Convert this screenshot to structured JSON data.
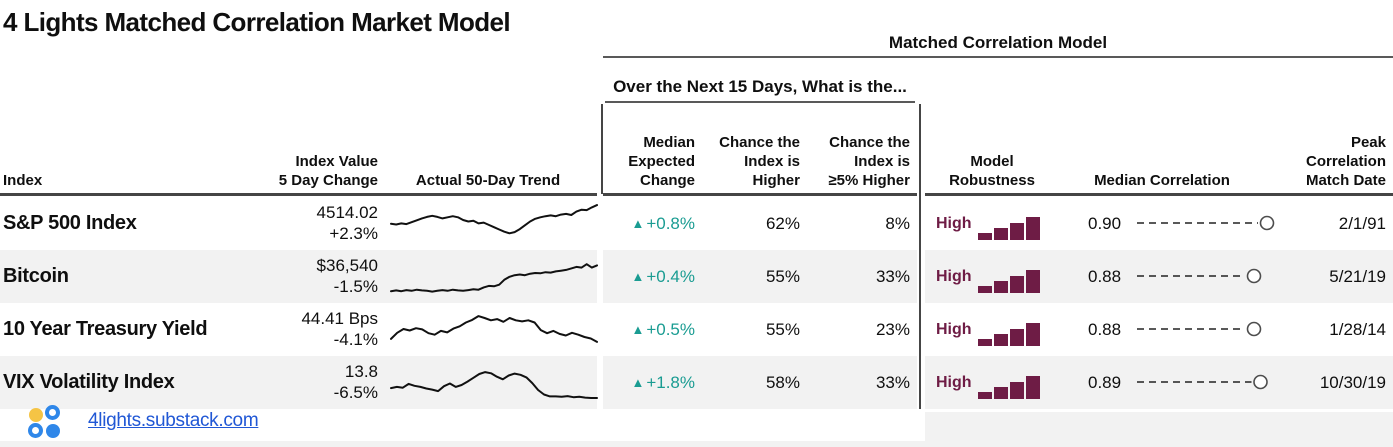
{
  "title": "4 Lights Matched Correlation Market Model",
  "glyphs": {
    "up_arrow": "▲"
  },
  "header": {
    "group_title": "Matched Correlation Model",
    "subgroup_title": "Over the Next 15 Days, What is the...",
    "col_index": "Index",
    "col_value": "Index Value\n5 Day Change",
    "col_trend": "Actual 50-Day Trend",
    "col_med_change": "Median\nExpected\nChange",
    "col_chance_higher": "Chance the\nIndex is\nHigher",
    "col_chance_5_higher": "Chance the\nIndex is\n≥5% Higher",
    "col_robustness": "Model\nRobustness",
    "col_median_correlation": "Median Correlation",
    "col_peak": "Peak\nCorrelation\nMatch Date"
  },
  "robustness_chart": {
    "bar_fractions": [
      0.3,
      0.52,
      0.74,
      1.0
    ]
  },
  "chart_data": {
    "type": "table",
    "title": "4 Lights Matched Correlation Market Model",
    "section_header": "Matched Correlation Model",
    "subsection_header": "Over the Next 15 Days, What is the...",
    "columns": [
      "Index",
      "Index Value 5 Day Change",
      "Actual 50-Day Trend",
      "Median Expected Change",
      "Chance the Index is Higher",
      "Chance the Index is ≥5% Higher",
      "Model Robustness",
      "Median Correlation",
      "Peak Correlation Match Date"
    ],
    "rows": [
      {
        "index": "S&P 500 Index",
        "index_value": "4514.02",
        "five_day_change": "+2.3%",
        "median_expected_change": "+0.8%",
        "direction": "up",
        "chance_higher": "62%",
        "chance_5pct_higher": "8%",
        "model_robustness": "High",
        "median_correlation": 0.9,
        "median_correlation_label": "0.90",
        "peak_match_date": "2/1/91",
        "trend_sparkline": [
          48,
          46,
          49,
          47,
          52,
          57,
          62,
          66,
          69,
          66,
          62,
          65,
          68,
          65,
          58,
          54,
          56,
          49,
          51,
          45,
          39,
          33,
          27,
          23,
          26,
          34,
          44,
          54,
          61,
          65,
          68,
          70,
          68,
          72,
          74,
          71,
          80,
          85,
          84,
          91,
          97
        ]
      },
      {
        "index": "Bitcoin",
        "index_value": "$36,540",
        "five_day_change": "-1.5%",
        "median_expected_change": "+0.4%",
        "direction": "up",
        "chance_higher": "55%",
        "chance_5pct_higher": "33%",
        "model_robustness": "High",
        "median_correlation": 0.88,
        "median_correlation_label": "0.88",
        "peak_match_date": "5/21/19",
        "trend_sparkline": [
          10,
          12,
          10,
          13,
          11,
          14,
          12,
          11,
          9,
          11,
          13,
          11,
          14,
          12,
          11,
          13,
          15,
          14,
          20,
          24,
          23,
          27,
          40,
          48,
          52,
          54,
          52,
          56,
          58,
          57,
          60,
          59,
          62,
          64,
          66,
          70,
          74,
          72,
          81,
          72,
          78
        ]
      },
      {
        "index": "10 Year Treasury Yield",
        "index_value": "44.41 Bps",
        "five_day_change": "-4.1%",
        "median_expected_change": "+0.5%",
        "direction": "up",
        "chance_higher": "55%",
        "chance_5pct_higher": "23%",
        "model_robustness": "High",
        "median_correlation": 0.88,
        "median_correlation_label": "0.88",
        "peak_match_date": "1/28/14",
        "trend_sparkline": [
          24,
          40,
          50,
          46,
          52,
          49,
          39,
          35,
          45,
          41,
          51,
          57,
          67,
          74,
          84,
          79,
          73,
          76,
          69,
          79,
          73,
          70,
          73,
          67,
          47,
          39,
          45,
          37,
          33,
          40,
          35,
          29,
          25,
          16
        ]
      },
      {
        "index": "VIX Volatility Index",
        "index_value": "13.8",
        "five_day_change": "-6.5%",
        "median_expected_change": "+1.8%",
        "direction": "up",
        "chance_higher": "58%",
        "chance_5pct_higher": "33%",
        "model_robustness": "High",
        "median_correlation": 0.89,
        "median_correlation_label": "0.89",
        "peak_match_date": "10/30/19",
        "trend_sparkline": [
          34,
          37,
          35,
          45,
          40,
          37,
          33,
          30,
          26,
          39,
          46,
          37,
          42,
          51,
          61,
          71,
          76,
          73,
          64,
          57,
          67,
          72,
          69,
          62,
          47,
          29,
          17,
          12,
          12,
          11,
          13,
          10,
          11,
          9,
          8,
          8
        ]
      }
    ]
  },
  "footer": {
    "link": "4lights.substack.com"
  },
  "colors": {
    "teal": "#1A9C92",
    "maroon": "#6E1C45",
    "stripe": "#F2F2F2",
    "rule_dark": "#454545",
    "rule_mid": "#595959",
    "link_blue": "#2057D5",
    "logo_blue": "#2F87E9",
    "logo_yellow": "#F5C445",
    "spark_line": "#111111"
  }
}
